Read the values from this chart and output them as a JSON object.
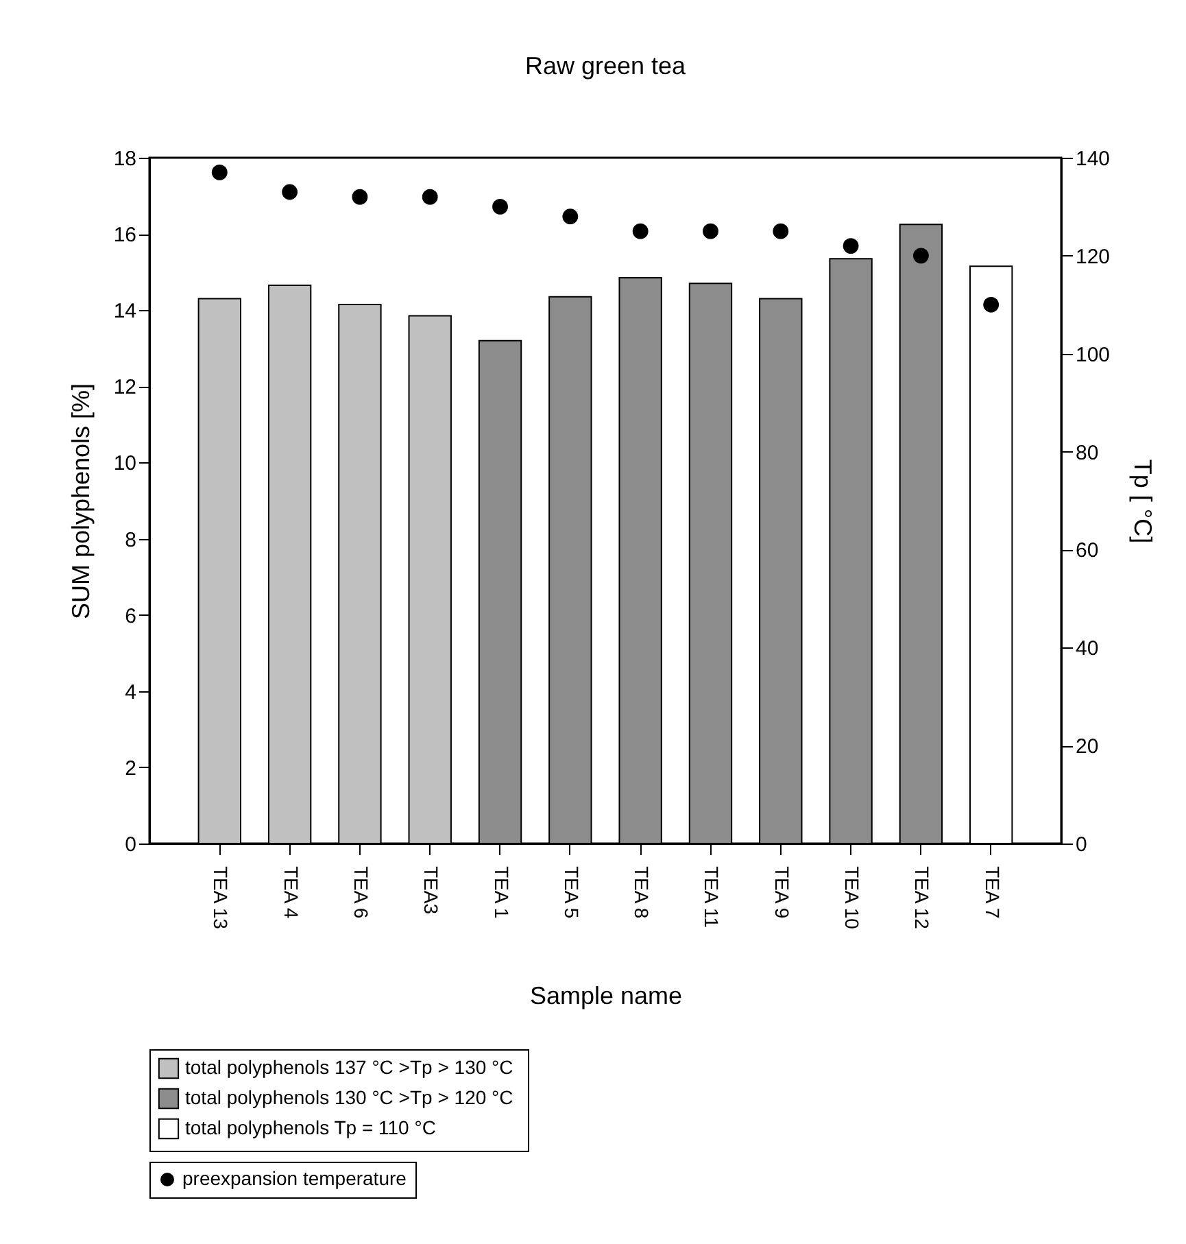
{
  "chart_data": {
    "type": "bar",
    "title": "Raw green tea",
    "xlabel": "Sample name",
    "ylabel": "SUM polyphenols [%]",
    "y2label": "Tp [ °C]",
    "categories": [
      "TEA 13",
      "TEA 4",
      "TEA 6",
      "TEA3",
      "TEA 1",
      "TEA 5",
      "TEA 8",
      "TEA 11",
      "TEA 9",
      "TEA 10",
      "TEA 12",
      "TEA 7"
    ],
    "series": [
      {
        "name": "total polyphenols  137 °C >Tp > 130 °C",
        "color": "#c0c0c0",
        "values": [
          14.3,
          14.65,
          14.15,
          13.85,
          null,
          null,
          null,
          null,
          null,
          null,
          null,
          null
        ]
      },
      {
        "name": "total polyphenols  130 °C >Tp > 120 °C",
        "color": "#8c8c8c",
        "values": [
          null,
          null,
          null,
          null,
          13.2,
          14.35,
          14.85,
          14.7,
          14.3,
          15.35,
          16.25,
          null
        ]
      },
      {
        "name": "total polyphenols  Tp = 110 °C",
        "color": "#ffffff",
        "values": [
          null,
          null,
          null,
          null,
          null,
          null,
          null,
          null,
          null,
          null,
          null,
          15.15
        ]
      },
      {
        "name": "preexpansion temperature",
        "type": "scatter",
        "axis": "y2",
        "color": "#000000",
        "values": [
          137,
          133,
          132,
          132,
          130,
          128,
          125,
          125,
          125,
          122,
          120,
          110
        ]
      }
    ],
    "ylim": [
      0,
      18
    ],
    "yticks": [
      0,
      2,
      4,
      6,
      8,
      10,
      12,
      14,
      16,
      18
    ],
    "y2lim": [
      0,
      140
    ],
    "y2ticks": [
      0,
      20,
      40,
      60,
      80,
      100,
      120,
      140
    ],
    "grid": false,
    "legend": "bottom",
    "marker": "circle"
  }
}
